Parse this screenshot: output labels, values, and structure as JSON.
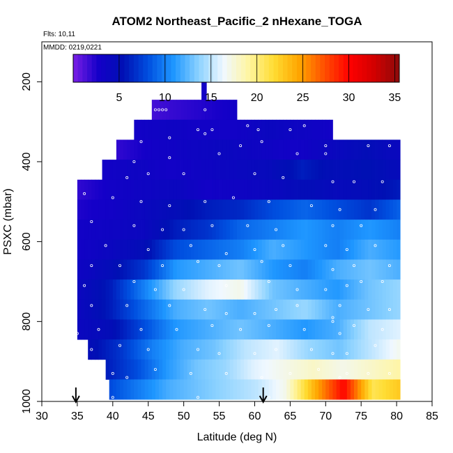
{
  "chart_data": {
    "type": "heatmap",
    "title": "ATOM2 Northeast_Pacific_2 nHexane_TOGA",
    "flights_label": "Flts: 10,11",
    "dates_label": "MMDD: 0219,0221",
    "xlabel": "Latitude (deg N)",
    "ylabel": "PSXC (mbar)",
    "xlim": [
      30,
      85
    ],
    "ylim": [
      1000,
      100
    ],
    "x_ticks": [
      30,
      35,
      40,
      45,
      50,
      55,
      60,
      65,
      70,
      75,
      80,
      85
    ],
    "y_ticks": [
      200,
      400,
      600,
      800,
      1000
    ],
    "colorbar": {
      "range": [
        0,
        35.5
      ],
      "ticks": [
        5,
        10,
        15,
        20,
        25,
        30,
        35
      ],
      "colors": [
        "#7a1fe6",
        "#1400c8",
        "#0010b4",
        "#0050e0",
        "#1e96ff",
        "#8cd2ff",
        "#f0f8ff",
        "#fff5a0",
        "#ffdc32",
        "#ffa500",
        "#ff5000",
        "#ff0000",
        "#d20000",
        "#8c0a0a"
      ]
    },
    "arrows_at_latitude": [
      34.8,
      61.2
    ],
    "pressure_levels": [
      220,
      270,
      320,
      370,
      420,
      470,
      520,
      570,
      620,
      670,
      720,
      770,
      820,
      870,
      920,
      970
    ],
    "rows": [
      {
        "p": 220,
        "lat": [
          52.5,
          53.2
        ],
        "vals": [
          3
        ]
      },
      {
        "p": 270,
        "lat": [
          45.5,
          57.5
        ],
        "vals": [
          1.5,
          2,
          2.5,
          3
        ]
      },
      {
        "p": 320,
        "lat": [
          43,
          71
        ],
        "vals": [
          3,
          3.5,
          3,
          3,
          4,
          3.5,
          3
        ]
      },
      {
        "p": 370,
        "lat": [
          40.5,
          80.5
        ],
        "vals": [
          2,
          3,
          3.5,
          4,
          3.5,
          3,
          4,
          5,
          4
        ]
      },
      {
        "p": 420,
        "lat": [
          38.5,
          80.5
        ],
        "vals": [
          3,
          3.5,
          3,
          3.5,
          4,
          4.5,
          6,
          5,
          5.5,
          4.5
        ]
      },
      {
        "p": 470,
        "lat": [
          35,
          80.5
        ],
        "vals": [
          2,
          3,
          3.5,
          4,
          3,
          3.5,
          4,
          5,
          4.5,
          5,
          6
        ]
      },
      {
        "p": 520,
        "lat": [
          35,
          80.5
        ],
        "vals": [
          2.5,
          3,
          4,
          5,
          6,
          6.5,
          8,
          9,
          8,
          7,
          9
        ]
      },
      {
        "p": 570,
        "lat": [
          35,
          80.5
        ],
        "vals": [
          3,
          3.5,
          4,
          6,
          7,
          9,
          10,
          11,
          10,
          11,
          10
        ]
      },
      {
        "p": 620,
        "lat": [
          35,
          80.5
        ],
        "vals": [
          3,
          4,
          5,
          8,
          9,
          10,
          12,
          11,
          10,
          12,
          11
        ]
      },
      {
        "p": 670,
        "lat": [
          35,
          80.5
        ],
        "vals": [
          3.5,
          5,
          7,
          11,
          12,
          13,
          11,
          10,
          12,
          13,
          12
        ]
      },
      {
        "p": 720,
        "lat": [
          35,
          80.5
        ],
        "vals": [
          4,
          6,
          10,
          14,
          16,
          17,
          13,
          12,
          11,
          13,
          14
        ]
      },
      {
        "p": 770,
        "lat": [
          35,
          80.5
        ],
        "vals": [
          4,
          6,
          9,
          12,
          13,
          12,
          13,
          14,
          12,
          13,
          14
        ]
      },
      {
        "p": 820,
        "lat": [
          35,
          80.5
        ],
        "vals": [
          4,
          5,
          8,
          11,
          12,
          13,
          12,
          11,
          12,
          15,
          16
        ]
      },
      {
        "p": 870,
        "lat": [
          36.5,
          80.5
        ],
        "vals": [
          5,
          7,
          10,
          12,
          13,
          15,
          16,
          14,
          13,
          15,
          17
        ]
      },
      {
        "p": 920,
        "lat": [
          39,
          80.5
        ],
        "vals": [
          6,
          8,
          11,
          13,
          14,
          16,
          17,
          18,
          17,
          18,
          19
        ]
      },
      {
        "p": 970,
        "lat": [
          39.5,
          80.5
        ],
        "vals": [
          8,
          10,
          12,
          13,
          14,
          15,
          17,
          24,
          30,
          21,
          23
        ]
      }
    ],
    "sample_points": [
      [
        46,
        270
      ],
      [
        46.5,
        270
      ],
      [
        47,
        270
      ],
      [
        47.5,
        270
      ],
      [
        53,
        270
      ],
      [
        54,
        320
      ],
      [
        52,
        320
      ],
      [
        59,
        310
      ],
      [
        60.5,
        320
      ],
      [
        65,
        320
      ],
      [
        67,
        310
      ],
      [
        44,
        350
      ],
      [
        48,
        340
      ],
      [
        53,
        330
      ],
      [
        58,
        360
      ],
      [
        61,
        350
      ],
      [
        70,
        360
      ],
      [
        76,
        360
      ],
      [
        79,
        360
      ],
      [
        43,
        400
      ],
      [
        48,
        390
      ],
      [
        55,
        380
      ],
      [
        66,
        380
      ],
      [
        70,
        380
      ],
      [
        42,
        440
      ],
      [
        45,
        430
      ],
      [
        50,
        430
      ],
      [
        60,
        430
      ],
      [
        64,
        440
      ],
      [
        71,
        450
      ],
      [
        74,
        450
      ],
      [
        78,
        450
      ],
      [
        36,
        480
      ],
      [
        40,
        490
      ],
      [
        44,
        500
      ],
      [
        48,
        510
      ],
      [
        53,
        500
      ],
      [
        57,
        490
      ],
      [
        62,
        500
      ],
      [
        68,
        510
      ],
      [
        72,
        520
      ],
      [
        77,
        520
      ],
      [
        37,
        550
      ],
      [
        43,
        560
      ],
      [
        47,
        570
      ],
      [
        50,
        570
      ],
      [
        54,
        560
      ],
      [
        59,
        560
      ],
      [
        63,
        570
      ],
      [
        71,
        560
      ],
      [
        75,
        560
      ],
      [
        39,
        610
      ],
      [
        45,
        620
      ],
      [
        51,
        610
      ],
      [
        56,
        630
      ],
      [
        60,
        620
      ],
      [
        64,
        610
      ],
      [
        70,
        610
      ],
      [
        73,
        620
      ],
      [
        77,
        610
      ],
      [
        37,
        660
      ],
      [
        41,
        660
      ],
      [
        47,
        660
      ],
      [
        52,
        650
      ],
      [
        55,
        660
      ],
      [
        61,
        650
      ],
      [
        65,
        660
      ],
      [
        71,
        670
      ],
      [
        74,
        660
      ],
      [
        79,
        660
      ],
      [
        36,
        710
      ],
      [
        43,
        700
      ],
      [
        46,
        720
      ],
      [
        50,
        720
      ],
      [
        56,
        710
      ],
      [
        62,
        700
      ],
      [
        66,
        720
      ],
      [
        70,
        720
      ],
      [
        73,
        710
      ],
      [
        75,
        700
      ],
      [
        78,
        700
      ],
      [
        37,
        760
      ],
      [
        42,
        760
      ],
      [
        48,
        760
      ],
      [
        53,
        770
      ],
      [
        56,
        780
      ],
      [
        60,
        780
      ],
      [
        63,
        770
      ],
      [
        66,
        760
      ],
      [
        71,
        790
      ],
      [
        71,
        800
      ],
      [
        72,
        760
      ],
      [
        76,
        770
      ],
      [
        79,
        770
      ],
      [
        35,
        830
      ],
      [
        38,
        820
      ],
      [
        44,
        820
      ],
      [
        49,
        820
      ],
      [
        54,
        810
      ],
      [
        58,
        820
      ],
      [
        62,
        810
      ],
      [
        67,
        820
      ],
      [
        72,
        830
      ],
      [
        74,
        810
      ],
      [
        78,
        820
      ],
      [
        37,
        870
      ],
      [
        41,
        860
      ],
      [
        45,
        870
      ],
      [
        52,
        870
      ],
      [
        55,
        880
      ],
      [
        60,
        880
      ],
      [
        63,
        870
      ],
      [
        68,
        870
      ],
      [
        71,
        880
      ],
      [
        73,
        880
      ],
      [
        77,
        860
      ],
      [
        40,
        930
      ],
      [
        42,
        940
      ],
      [
        46,
        920
      ],
      [
        51,
        930
      ],
      [
        56,
        930
      ],
      [
        61,
        940
      ],
      [
        65,
        930
      ],
      [
        69,
        920
      ],
      [
        72,
        940
      ],
      [
        73,
        930
      ],
      [
        76,
        930
      ],
      [
        79,
        930
      ],
      [
        40,
        990
      ],
      [
        44,
        1000
      ],
      [
        47,
        1000
      ],
      [
        52,
        990
      ],
      [
        56,
        1000
      ],
      [
        62,
        990
      ]
    ]
  }
}
